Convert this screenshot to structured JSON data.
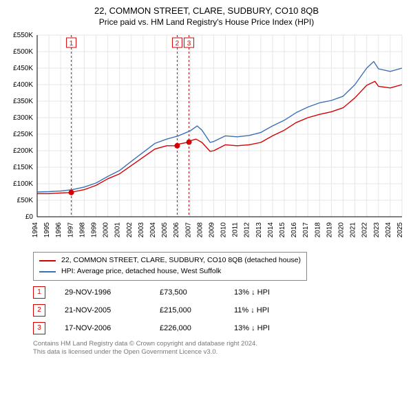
{
  "title": "22, COMMON STREET, CLARE, SUDBURY, CO10 8QB",
  "subtitle": "Price paid vs. HM Land Registry's House Price Index (HPI)",
  "chart": {
    "type": "line",
    "background_color": "#ffffff",
    "grid_color": "#e6e6e6",
    "axis_color": "#000000",
    "label_color": "#000000",
    "tick_fontsize": 10,
    "x": {
      "min": 1994,
      "max": 2025,
      "tick_step": 1
    },
    "y": {
      "min": 0,
      "max": 550000,
      "tick_step": 50000,
      "prefix": "£",
      "suffix_thousands": "K"
    },
    "series": [
      {
        "key": "property",
        "label": "22, COMMON STREET, CLARE, SUDBURY, CO10 8QB (detached house)",
        "color": "#d40000",
        "line_width": 1.4,
        "points": [
          [
            1994,
            70000
          ],
          [
            1995,
            70000
          ],
          [
            1996,
            72000
          ],
          [
            1996.9,
            73500
          ],
          [
            1997,
            75000
          ],
          [
            1998,
            82000
          ],
          [
            1999,
            95000
          ],
          [
            2000,
            115000
          ],
          [
            2001,
            130000
          ],
          [
            2002,
            155000
          ],
          [
            2003,
            180000
          ],
          [
            2004,
            205000
          ],
          [
            2005,
            215000
          ],
          [
            2005.9,
            215000
          ],
          [
            2006,
            220000
          ],
          [
            2006.9,
            226000
          ],
          [
            2007,
            230000
          ],
          [
            2007.5,
            235000
          ],
          [
            2008,
            225000
          ],
          [
            2008.7,
            198000
          ],
          [
            2009,
            200000
          ],
          [
            2010,
            218000
          ],
          [
            2011,
            215000
          ],
          [
            2012,
            218000
          ],
          [
            2013,
            225000
          ],
          [
            2014,
            245000
          ],
          [
            2015,
            262000
          ],
          [
            2016,
            285000
          ],
          [
            2017,
            300000
          ],
          [
            2018,
            310000
          ],
          [
            2019,
            318000
          ],
          [
            2020,
            330000
          ],
          [
            2021,
            360000
          ],
          [
            2022,
            398000
          ],
          [
            2022.7,
            410000
          ],
          [
            2023,
            395000
          ],
          [
            2024,
            390000
          ],
          [
            2025,
            400000
          ]
        ]
      },
      {
        "key": "hpi",
        "label": "HPI: Average price, detached house, West Suffolk",
        "color": "#3b6fb6",
        "line_width": 1.4,
        "points": [
          [
            1994,
            75000
          ],
          [
            1995,
            76000
          ],
          [
            1996,
            78000
          ],
          [
            1997,
            82000
          ],
          [
            1998,
            90000
          ],
          [
            1999,
            102000
          ],
          [
            2000,
            122000
          ],
          [
            2001,
            140000
          ],
          [
            2002,
            168000
          ],
          [
            2003,
            195000
          ],
          [
            2004,
            222000
          ],
          [
            2005,
            235000
          ],
          [
            2006,
            245000
          ],
          [
            2007,
            260000
          ],
          [
            2007.6,
            275000
          ],
          [
            2008,
            262000
          ],
          [
            2008.7,
            225000
          ],
          [
            2009,
            228000
          ],
          [
            2010,
            245000
          ],
          [
            2011,
            242000
          ],
          [
            2012,
            246000
          ],
          [
            2013,
            255000
          ],
          [
            2014,
            275000
          ],
          [
            2015,
            292000
          ],
          [
            2016,
            315000
          ],
          [
            2017,
            332000
          ],
          [
            2018,
            345000
          ],
          [
            2019,
            352000
          ],
          [
            2020,
            365000
          ],
          [
            2021,
            400000
          ],
          [
            2022,
            450000
          ],
          [
            2022.6,
            470000
          ],
          [
            2023,
            448000
          ],
          [
            2024,
            440000
          ],
          [
            2025,
            450000
          ]
        ]
      }
    ],
    "event_markers": {
      "line_color": "#d40000",
      "dash": "3,3",
      "box_border": "#d40000",
      "box_text_color": "#d40000",
      "dot_color": "#d40000",
      "dot_radius": 4,
      "items": [
        {
          "n": "1",
          "x": 1996.9,
          "y": 73500
        },
        {
          "n": "2",
          "x": 2005.9,
          "y": 215000
        },
        {
          "n": "3",
          "x": 2006.9,
          "y": 226000
        }
      ]
    }
  },
  "legend": [
    {
      "label_key": "chart.series.0.label",
      "color_key": "chart.series.0.color"
    },
    {
      "label_key": "chart.series.1.label",
      "color_key": "chart.series.1.color"
    }
  ],
  "events_table": {
    "box_color": "#d40000",
    "rows": [
      {
        "n": "1",
        "date": "29-NOV-1996",
        "price": "£73,500",
        "delta": "13% ↓ HPI"
      },
      {
        "n": "2",
        "date": "21-NOV-2005",
        "price": "£215,000",
        "delta": "11% ↓ HPI"
      },
      {
        "n": "3",
        "date": "17-NOV-2006",
        "price": "£226,000",
        "delta": "13% ↓ HPI"
      }
    ]
  },
  "footer": {
    "line1": "Contains HM Land Registry data © Crown copyright and database right 2024.",
    "line2": "This data is licensed under the Open Government Licence v3.0."
  }
}
